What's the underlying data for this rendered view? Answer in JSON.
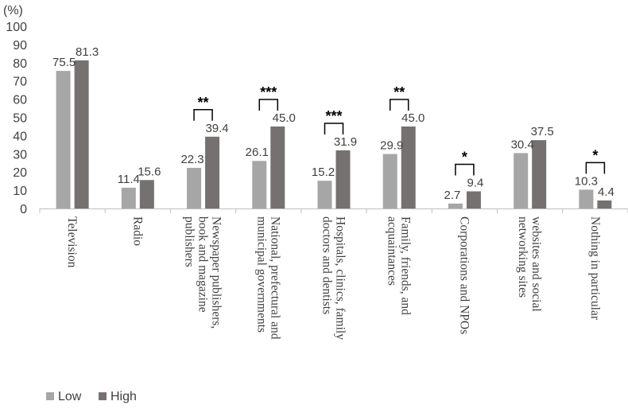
{
  "chart_data": {
    "type": "bar",
    "ylabel": "(%)",
    "ylim": [
      0,
      100
    ],
    "yticks": [
      "0",
      "10",
      "20",
      "30",
      "40",
      "50",
      "60",
      "70",
      "80",
      "90",
      "100"
    ],
    "categories": [
      [
        "Television"
      ],
      [
        "Radio"
      ],
      [
        "Newspaper publishers,",
        "book and magazine",
        "publishers"
      ],
      [
        "National, prefectural and",
        "municipal governments"
      ],
      [
        "Hospitals, clinics, family",
        "doctors and dentists"
      ],
      [
        "Family, friends, and",
        "acquaintances"
      ],
      [
        "Corporations and NPOs"
      ],
      [
        "websites and social",
        "networking sites"
      ],
      [
        "Nothing in particular"
      ]
    ],
    "series": [
      {
        "name": "Low",
        "color": "#a6a6a6",
        "values": [
          75.5,
          11.4,
          22.3,
          26.1,
          15.2,
          29.9,
          2.7,
          30.4,
          10.3
        ],
        "labels": [
          "75.5",
          "11.4",
          "22.3",
          "26.1",
          "15.2",
          "29.9",
          "2.7",
          "30.4",
          "10.3"
        ]
      },
      {
        "name": "High",
        "color": "#757171",
        "values": [
          81.3,
          15.6,
          39.4,
          45.0,
          31.9,
          45.0,
          9.4,
          37.5,
          4.4
        ],
        "labels": [
          "81.3",
          "15.6",
          "39.4",
          "45.0",
          "31.9",
          "45.0",
          "9.4",
          "37.5",
          "4.4"
        ]
      }
    ],
    "significance": [
      "",
      "",
      "**",
      "***",
      "***",
      "**",
      "*",
      "",
      "*"
    ],
    "legend_position": "bottom-left",
    "grid": false
  }
}
